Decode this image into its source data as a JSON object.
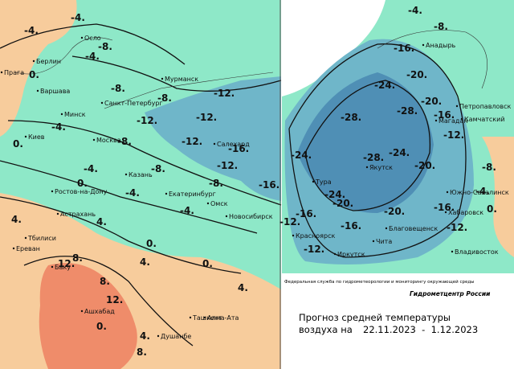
{
  "left_map": {
    "cities": [
      "Осло",
      "Берлин",
      "Прага",
      "Варшава",
      "Минск",
      "Киев",
      "Санкт-Петербург",
      "Мурманск",
      "Москва",
      "Казань",
      "Екатеринбург",
      "Ростов-на-Дону",
      "Астрахань",
      "Тбилиси",
      "Ереван",
      "Баку",
      "Ашхабад",
      "Омск",
      "Новосибирск",
      "Салехард",
      "Ташкент",
      "Алма-Ата",
      "Душанбе"
    ],
    "isolines": [
      "-4.",
      "-4.",
      "-8.",
      "-4.",
      "0.",
      "-8.",
      "-8.",
      "-12.",
      "-12.",
      "-12.",
      "-8.",
      "-12.",
      "-16.",
      "-12.",
      "-16.",
      "-4.",
      "-4.",
      "-8.",
      "-8.",
      "-4.",
      "-4.",
      "0.",
      "0.",
      "4.",
      "4.",
      "0.",
      "4.",
      "0.",
      "8.",
      "12.",
      "8.",
      "12.",
      "4.",
      "0.",
      "8.",
      "4."
    ]
  },
  "right_map": {
    "cities": [
      "Анадырь",
      "Петропавловск",
      "Камчатский",
      "Магадан",
      "Якутск",
      "Тура",
      "Южно-Сахалинск",
      "Хабаровск",
      "Благовещенск",
      "Чита",
      "Красноярск",
      "Иркутск",
      "Владивосток"
    ],
    "isolines": [
      "-4.",
      "-8.",
      "-16.",
      "-20.",
      "-24.",
      "-28.",
      "-28.",
      "-28.",
      "-24.",
      "-24.",
      "-24.",
      "-20.",
      "-20.",
      "-20.",
      "-20.",
      "-16.",
      "-12.",
      "-16.",
      "-16.",
      "-12.",
      "-16.",
      "-12.",
      "-4.",
      "0.",
      "-8.",
      "-12."
    ]
  },
  "credits": {
    "agency": "Федеральная служба по гидрометеорологии и мониторингу окружающей среды",
    "center": "Гидрометцентр России"
  },
  "title": {
    "line1": "Прогноз средней температуры",
    "line2": "воздуха на",
    "period": "22.11.2023  -  1.12.2023"
  }
}
